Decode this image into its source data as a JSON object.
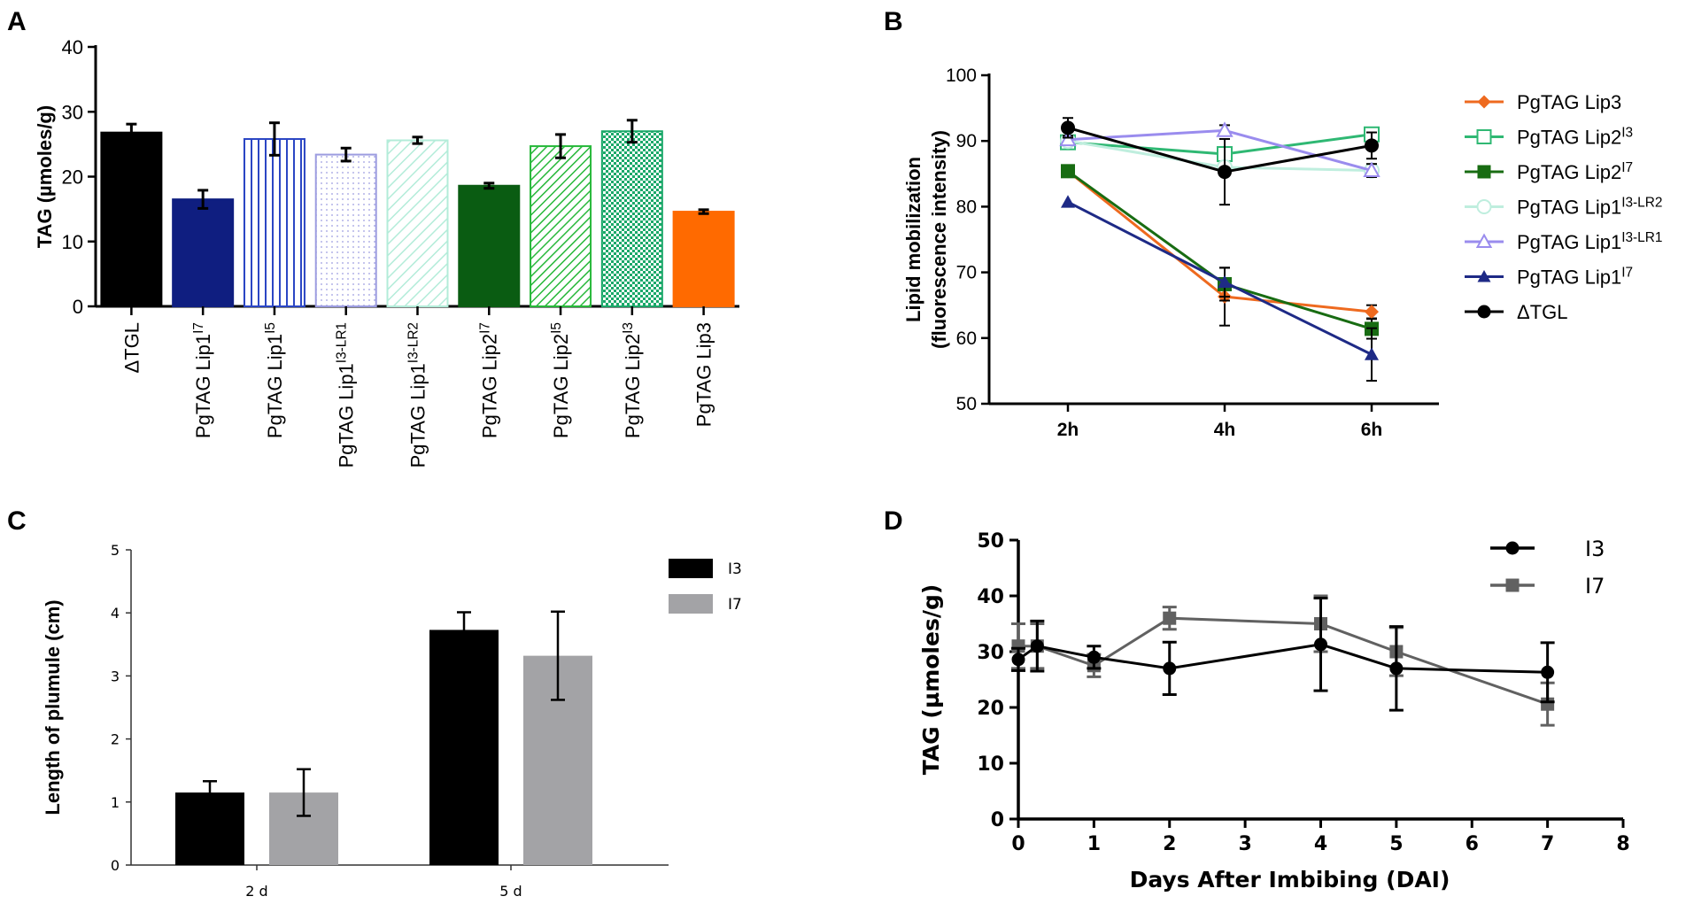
{
  "panels": {
    "A": {
      "letter": "A"
    },
    "B": {
      "letter": "B"
    },
    "C": {
      "letter": "C"
    },
    "D": {
      "letter": "D"
    }
  },
  "chart_data": [
    {
      "id": "A",
      "type": "bar",
      "title": "",
      "xlabel": "",
      "ylabel": "TAG (µmoles/g)",
      "ylim": [
        0,
        40
      ],
      "yticks": [
        0,
        10,
        20,
        30,
        40
      ],
      "categories": [
        {
          "label": "ΔTGL",
          "base": "ΔTGL",
          "sup": ""
        },
        {
          "label": "PgTAG Lip1I7",
          "base": "PgTAG Lip1",
          "sup": "I7"
        },
        {
          "label": "PgTAG Lip1I5",
          "base": "PgTAG Lip1",
          "sup": "I5"
        },
        {
          "label": "PgTAG Lip1I3-LR1",
          "base": "PgTAG Lip1",
          "sup": "I3-LR1"
        },
        {
          "label": "PgTAG Lip1I3-LR2",
          "base": "PgTAG Lip1",
          "sup": "I3-LR2"
        },
        {
          "label": "PgTAG Lip2I7",
          "base": "PgTAG Lip2",
          "sup": "I7"
        },
        {
          "label": "PgTAG Lip2I5",
          "base": "PgTAG Lip2",
          "sup": "I5"
        },
        {
          "label": "PgTAG Lip2I3",
          "base": "PgTAG Lip2",
          "sup": "I3"
        },
        {
          "label": "PgTAG Lip3",
          "base": "PgTAG Lip3",
          "sup": ""
        }
      ],
      "values": [
        26.8,
        16.5,
        25.8,
        23.4,
        25.6,
        18.6,
        24.7,
        27.0,
        14.6
      ],
      "errors": [
        1.3,
        1.4,
        2.5,
        1.0,
        0.5,
        0.4,
        1.8,
        1.7,
        0.3
      ],
      "bar_styles": [
        {
          "fill": "#000000",
          "pattern": "solid"
        },
        {
          "fill": "#0f1e80",
          "pattern": "solid"
        },
        {
          "fill": "#2b46c4",
          "pattern": "vertical-lines"
        },
        {
          "fill": "#9c9ce0",
          "pattern": "dots"
        },
        {
          "fill": "#b3ecd9",
          "pattern": "diagonal-lines"
        },
        {
          "fill": "#0a5c12",
          "pattern": "solid"
        },
        {
          "fill": "#27b83a",
          "pattern": "dense-diagonal"
        },
        {
          "fill": "#1aa869",
          "pattern": "checker"
        },
        {
          "fill": "#ff6a00",
          "pattern": "solid"
        }
      ]
    },
    {
      "id": "B",
      "type": "line",
      "title": "",
      "xlabel": "",
      "ylabel_line1": "Lipid mobilization",
      "ylabel_line2": "(fluorescence intensity)",
      "ylim": [
        50,
        100
      ],
      "yticks": [
        50,
        60,
        70,
        80,
        90,
        100
      ],
      "x": [
        "2h",
        "4h",
        "6h"
      ],
      "series": [
        {
          "name": "PgTAG Lip3",
          "base": "PgTAG Lip3",
          "sup": "",
          "color": "#ee6a1f",
          "marker": "diamond",
          "values": [
            85.4,
            66.3,
            64.0
          ],
          "errors": [
            0,
            4.4,
            1.0
          ]
        },
        {
          "name": "PgTAG Lip2I3",
          "base": "PgTAG Lip2",
          "sup": "I3",
          "color": "#2fb873",
          "marker": "square-open",
          "values": [
            89.8,
            88.0,
            91.0
          ],
          "errors": [
            0.8,
            1.0,
            0.8
          ]
        },
        {
          "name": "PgTAG Lip2I7",
          "base": "PgTAG Lip2",
          "sup": "I7",
          "color": "#186c12",
          "marker": "square",
          "values": [
            85.4,
            68.2,
            61.4
          ],
          "errors": [
            0.6,
            2.5,
            1.5
          ]
        },
        {
          "name": "PgTAG Lip1I3-LR2",
          "base": "PgTAG Lip1",
          "sup": "I3-LR2",
          "color": "#bfeede",
          "marker": "circle-open",
          "values": [
            90.0,
            86.0,
            85.5
          ],
          "errors": [
            0,
            0,
            0
          ]
        },
        {
          "name": "PgTAG Lip1I3-LR1",
          "base": "PgTAG Lip1",
          "sup": "I3-LR1",
          "color": "#9a8cee",
          "marker": "triangle-open",
          "values": [
            90.2,
            91.6,
            85.5
          ],
          "errors": [
            0.6,
            0.8,
            1.0
          ]
        },
        {
          "name": "PgTAG Lip1I7",
          "base": "PgTAG Lip1",
          "sup": "I7",
          "color": "#1e2a86",
          "marker": "triangle",
          "values": [
            80.7,
            68.5,
            57.5
          ],
          "errors": [
            0,
            2.2,
            4.0
          ]
        },
        {
          "name": "ΔTGL",
          "base": "ΔTGL",
          "sup": "",
          "color": "#000000",
          "marker": "circle",
          "values": [
            92.0,
            85.3,
            89.3
          ],
          "errors": [
            1.5,
            5.0,
            2.0
          ]
        }
      ]
    },
    {
      "id": "C",
      "type": "bar",
      "title": "",
      "xlabel": "",
      "ylabel": "Length of  plumule (cm)",
      "ylim": [
        0,
        5
      ],
      "yticks": [
        0,
        1,
        2,
        3,
        4,
        5
      ],
      "categories": [
        "2 d",
        "5 d"
      ],
      "series": [
        {
          "name": "I3",
          "color": "#000000",
          "values": [
            1.15,
            3.73
          ],
          "errors": [
            0.18,
            0.28
          ]
        },
        {
          "name": "I7",
          "color": "#a3a3a6",
          "values": [
            1.15,
            3.32
          ],
          "errors": [
            0.37,
            0.7
          ]
        }
      ]
    },
    {
      "id": "D",
      "type": "line",
      "title": "",
      "xlabel": "Days After Imbibing (DAI)",
      "ylabel": "TAG (µmoles/g)",
      "xlim": [
        0,
        8
      ],
      "ylim": [
        0,
        50
      ],
      "xticks": [
        0,
        1,
        2,
        3,
        4,
        5,
        6,
        7,
        8
      ],
      "yticks": [
        0,
        10,
        20,
        30,
        40,
        50
      ],
      "series": [
        {
          "name": "I3",
          "color": "#000000",
          "marker": "circle",
          "x": [
            0,
            0.25,
            1,
            2,
            4,
            5,
            7
          ],
          "values": [
            28.6,
            31.0,
            29.0,
            27.0,
            31.3,
            27.0,
            26.3
          ],
          "errors": [
            2.0,
            4.5,
            2.0,
            4.7,
            8.3,
            7.5,
            5.3
          ]
        },
        {
          "name": "I7",
          "color": "#616161",
          "marker": "square",
          "x": [
            0,
            0.25,
            1,
            2,
            4,
            5,
            7
          ],
          "values": [
            31.0,
            31.0,
            27.5,
            36.0,
            35.0,
            30.0,
            20.6
          ],
          "errors": [
            4.0,
            4.0,
            2.0,
            2.0,
            5.0,
            4.3,
            3.8
          ]
        }
      ]
    }
  ]
}
